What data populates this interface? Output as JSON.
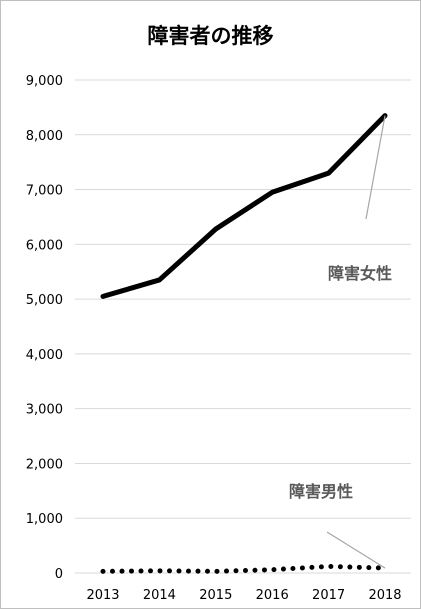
{
  "chart_data": {
    "type": "line",
    "title": "障害者の推移",
    "categories": [
      "2013",
      "2014",
      "2015",
      "2016",
      "2017",
      "2018"
    ],
    "ylim": [
      0,
      9000
    ],
    "yticks": [
      0,
      1000,
      2000,
      3000,
      4000,
      5000,
      6000,
      7000,
      8000,
      9000
    ],
    "ytick_labels": [
      "0",
      "1,000",
      "2,000",
      "3,000",
      "4,000",
      "5,000",
      "6,000",
      "7,000",
      "8,000",
      "9,000"
    ],
    "grid": true,
    "series": [
      {
        "name": "障害女性",
        "style": "solid",
        "color": "#000000",
        "values": [
          5050,
          5350,
          6280,
          6950,
          7300,
          8350
        ]
      },
      {
        "name": "障害男性",
        "style": "dotted",
        "color": "#000000",
        "values": [
          30,
          40,
          30,
          60,
          120,
          90
        ]
      }
    ],
    "annotations": [
      {
        "text": "障害女性",
        "series": 0
      },
      {
        "text": "障害男性",
        "series": 1
      }
    ],
    "colors": {
      "grid": "#d9d9d9",
      "leader": "#a6a6a6",
      "label": "#595959",
      "tick": "#000000"
    }
  }
}
